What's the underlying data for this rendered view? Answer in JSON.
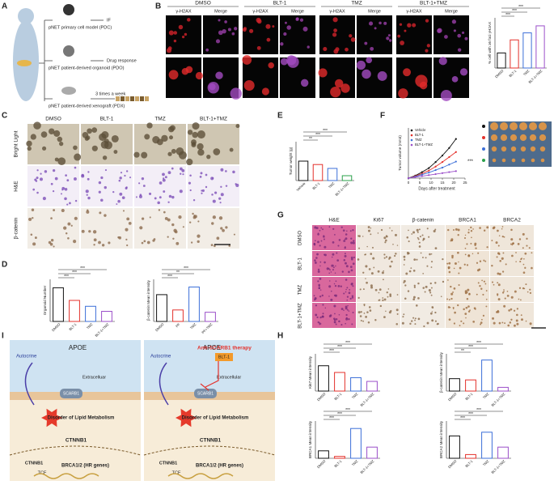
{
  "panel_labels": [
    "A",
    "B",
    "C",
    "D",
    "E",
    "F",
    "G",
    "H",
    "I"
  ],
  "panel_a": {
    "models": [
      {
        "name": "pNET primary cell model (PDC)",
        "use": "IF"
      },
      {
        "name": "pNET patient-derived organoid (PDO)",
        "use": "Drug response"
      },
      {
        "name": "pNET patient-derived xenograft (PDX)",
        "use": "3 times a week"
      }
    ]
  },
  "panel_b": {
    "groups": [
      "DMSO",
      "BLT-1",
      "TMZ",
      "BLT-1+TMZ"
    ],
    "channels": [
      "γ-H2AX",
      "Merge"
    ],
    "chart": {
      "type": "bar",
      "ylabel": "% cell with ≥5 foci γH2AX",
      "categories": [
        "DMSO",
        "BLT-1",
        "TMZ",
        "BLT-1+TMZ"
      ],
      "values": [
        15,
        28,
        35,
        42
      ],
      "colors": [
        "#111111",
        "#e4312b",
        "#3c6fd8",
        "#9b4fc9"
      ],
      "ylim": [
        0,
        50
      ],
      "significance": [
        "***",
        "***",
        "***"
      ]
    }
  },
  "panel_c": {
    "columns": [
      "DMSO",
      "BLT-1",
      "TMZ",
      "BLT-1+TMZ"
    ],
    "rows": [
      "Bright Light",
      "H&E",
      "β-catenin"
    ]
  },
  "panel_d": {
    "charts": [
      {
        "type": "bar",
        "ylabel": "Organoid Number",
        "categories": [
          "DMSO",
          "BLT-1",
          "TMZ",
          "BLT-1+TMZ"
        ],
        "values": [
          40,
          25,
          18,
          12
        ],
        "colors": [
          "#111111",
          "#e4312b",
          "#3c6fd8",
          "#9b4fc9"
        ],
        "ylim": [
          0,
          50
        ],
        "significance": [
          "***",
          "***",
          "***"
        ]
      },
      {
        "type": "bar",
        "ylabel": "β-catenin Mean intensity",
        "categories": [
          "DMSO",
          "PF",
          "TMZ",
          "PF+TMZ"
        ],
        "values": [
          0.035,
          0.015,
          0.045,
          0.012
        ],
        "colors": [
          "#111111",
          "#e4312b",
          "#3c6fd8",
          "#9b4fc9"
        ],
        "ylim": [
          0,
          0.055
        ],
        "significance": [
          "***",
          "**",
          "***"
        ]
      }
    ]
  },
  "panel_e": {
    "chart": {
      "type": "bar",
      "ylabel": "Tumor weight (g)",
      "categories": [
        "Vehicle",
        "BLT-1",
        "TMZ",
        "BLT-1+TMZ"
      ],
      "values": [
        0.4,
        0.33,
        0.25,
        0.1
      ],
      "colors": [
        "#111111",
        "#e4312b",
        "#3c6fd8",
        "#2aa04a"
      ],
      "ylim": [
        0,
        0.8
      ],
      "significance": [
        "**",
        "***",
        "***"
      ]
    }
  },
  "panel_f": {
    "chart": {
      "type": "line",
      "ylabel": "Tumor volume (mm3)",
      "xlabel": "Days after treatment",
      "x": [
        0,
        3,
        6,
        9,
        12,
        15,
        18,
        21
      ],
      "xlim": [
        0,
        25
      ],
      "xticks": [
        0,
        5,
        10,
        15,
        20,
        25
      ],
      "ylim": [
        0,
        1000
      ],
      "series": [
        {
          "name": "Vehicle",
          "color": "#111111",
          "values": [
            0,
            50,
            120,
            200,
            320,
            450,
            600,
            780
          ]
        },
        {
          "name": "BLT-1",
          "color": "#e4312b",
          "values": [
            0,
            40,
            90,
            150,
            230,
            320,
            420,
            520
          ]
        },
        {
          "name": "TMZ",
          "color": "#3c6fd8",
          "values": [
            0,
            30,
            70,
            110,
            160,
            210,
            270,
            330
          ]
        },
        {
          "name": "BLT-1+TMZ",
          "color": "#9b4fc9",
          "values": [
            0,
            20,
            40,
            60,
            80,
            100,
            120,
            140
          ]
        }
      ],
      "significance": "***"
    }
  },
  "panel_g": {
    "columns": [
      "H&E",
      "Ki67",
      "β-catenin",
      "BRCA1",
      "BRCA2"
    ],
    "rows": [
      "DMSO",
      "BLT-1",
      "TMZ",
      "BLT-1+TMZ"
    ]
  },
  "panel_h": {
    "charts": [
      {
        "type": "bar",
        "ylabel": "Ki67 Mean intensity",
        "categories": [
          "DMSO",
          "BLT-1",
          "TMZ",
          "BLT-1+TMZ"
        ],
        "values": [
          0.034,
          0.025,
          0.018,
          0.013
        ],
        "colors": [
          "#111111",
          "#e4312b",
          "#3c6fd8",
          "#9b4fc9"
        ],
        "ylim": [
          0,
          0.05
        ],
        "significance": [
          "***",
          "***",
          "***"
        ]
      },
      {
        "type": "bar",
        "ylabel": "β-catenin Mean intensity",
        "categories": [
          "DMSO",
          "BLT-1",
          "TMZ",
          "BLT-1+TMZ"
        ],
        "values": [
          0.02,
          0.018,
          0.05,
          0.006
        ],
        "colors": [
          "#111111",
          "#e4312b",
          "#3c6fd8",
          "#9b4fc9"
        ],
        "ylim": [
          0,
          0.06
        ],
        "significance": [
          "**",
          "***",
          "***"
        ]
      },
      {
        "type": "bar",
        "ylabel": "BRCA1 Mean intensity",
        "categories": [
          "DMSO",
          "BLT-1",
          "TMZ",
          "BLT-1+TMZ"
        ],
        "values": [
          0.02,
          0.005,
          0.08,
          0.03
        ],
        "colors": [
          "#111111",
          "#e4312b",
          "#3c6fd8",
          "#9b4fc9"
        ],
        "ylim": [
          0,
          0.1
        ],
        "significance": [
          "***",
          "***",
          "***"
        ]
      },
      {
        "type": "bar",
        "ylabel": "BRCA2 Mean intensity",
        "categories": [
          "DMSO",
          "BLT-1",
          "TMZ",
          "BLT-1+TMZ"
        ],
        "values": [
          0.03,
          0.005,
          0.035,
          0.015
        ],
        "colors": [
          "#111111",
          "#e4312b",
          "#3c6fd8",
          "#9b4fc9"
        ],
        "ylim": [
          0,
          0.05
        ],
        "significance": [
          "***",
          "***",
          "***"
        ]
      }
    ]
  },
  "panel_i": {
    "left": {
      "autocrine": "Autocrine",
      "ligand": "APOE",
      "space": "Extracelluar",
      "receptor": "SCARB1",
      "process": "Disorder of Lipid Metabolism",
      "gene": "CTNNB1",
      "tf": "TCF",
      "target": "BRCA1/2 (HR genes)"
    },
    "right": {
      "autocrine": "Autocrine",
      "ligand": "APOE",
      "therapy": "Anti-SCARB1 therapy",
      "drug": "BLT-1",
      "space": "Extracellular",
      "receptor": "SCARB1",
      "process": "Disorder of Lipid Metabolism",
      "gene": "CTNNB1",
      "tf": "TCF",
      "target": "BRCA1/2 (HR genes)"
    }
  }
}
